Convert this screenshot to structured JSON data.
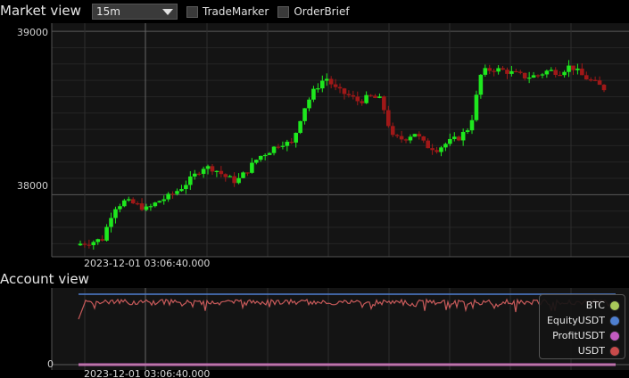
{
  "market": {
    "title": "Market view",
    "interval": "15m",
    "options": [
      {
        "label": "TradeMarker"
      },
      {
        "label": "OrderBrief"
      }
    ],
    "y_ticks": [
      "39000",
      "38000"
    ],
    "x_time_label": "2023-12-01 03:06:40.000"
  },
  "account": {
    "title": "Account view",
    "y_ticks": [
      "0"
    ],
    "x_time_label": "2023-12-01 03:06:40.000",
    "legend": [
      {
        "name": "BTC",
        "color": "#a8c95a"
      },
      {
        "name": "EquityUSDT",
        "color": "#4e7fd0"
      },
      {
        "name": "ProfitUSDT",
        "color": "#c25bc0"
      },
      {
        "name": "USDT",
        "color": "#c84a4a"
      }
    ]
  },
  "chart_data": {
    "type": "candlestick",
    "price_ticks": [
      39000,
      38000
    ],
    "ylim": [
      37620,
      39050
    ],
    "colors": {
      "up": "#1ee81e",
      "down": "#a01818"
    },
    "close_path": [
      37700,
      37710,
      37730,
      37920,
      37960,
      37940,
      37910,
      37960,
      37990,
      38040,
      38100,
      38170,
      38160,
      38110,
      38080,
      38150,
      38230,
      38270,
      38320,
      38310,
      38520,
      38640,
      38720,
      38640,
      38610,
      38570,
      38600,
      38580,
      38350,
      38340,
      38380,
      38300,
      38280,
      38320,
      38350,
      38420,
      38750,
      38770,
      38760,
      38740,
      38720,
      38730,
      38760,
      38750,
      38790,
      38730,
      38690,
      38650
    ]
  }
}
